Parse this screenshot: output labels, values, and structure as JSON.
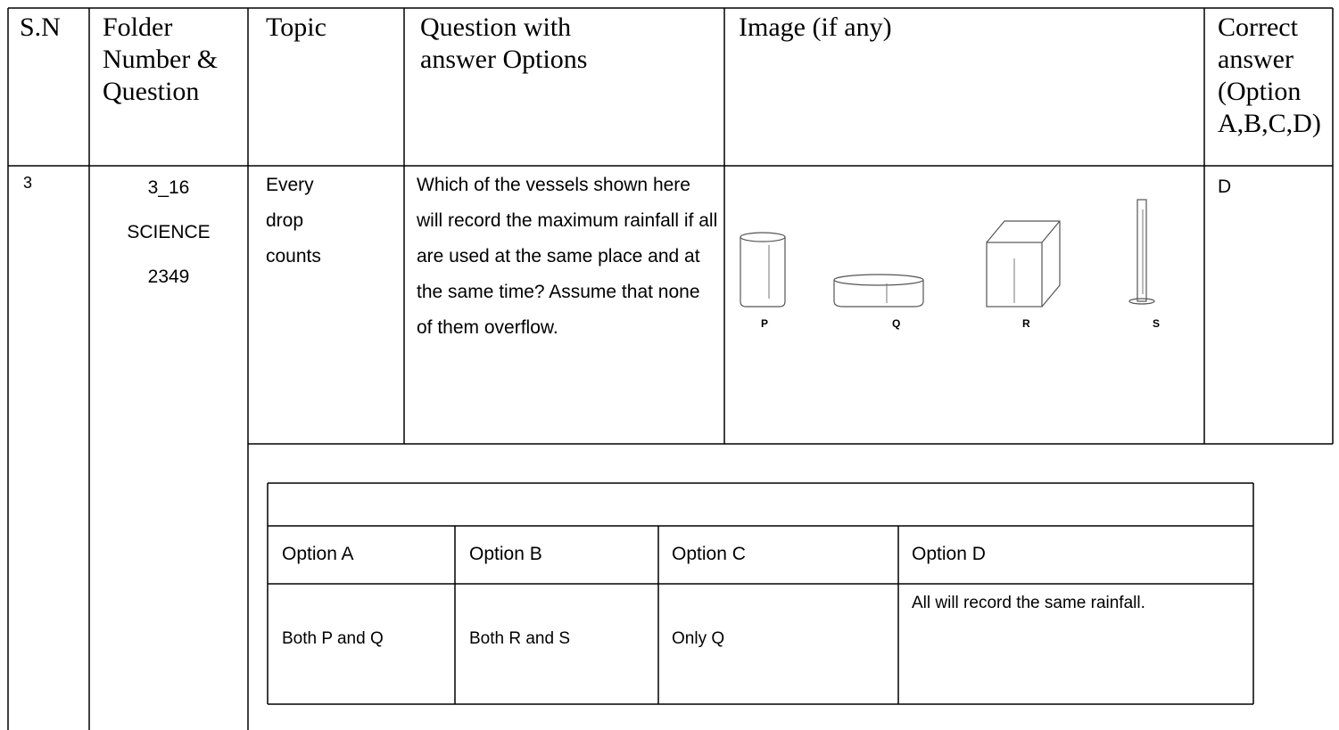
{
  "header": {
    "cells": [
      "S.N",
      "Folder Number & Question",
      "Topic",
      "Question with answer Options",
      "Image (if any)",
      "Correct answer (Option A,B,C,D)"
    ]
  },
  "row": {
    "sn": "3",
    "folder": [
      "3_16",
      "SCIENCE",
      "2349"
    ],
    "topic": "Every drop counts",
    "question": "Which of the vessels shown here will record the maximum rainfall if all are used at the same place and at the same time? Assume that none of them overflow.",
    "image_labels": [
      "P",
      "Q",
      "R",
      "S"
    ],
    "answer": "D"
  },
  "options": {
    "headers": [
      "Option A",
      "Option B",
      "Option C",
      "Option D"
    ],
    "values": [
      "Both P and Q",
      "Both R and S",
      "Only Q",
      "All will record the same rainfall."
    ]
  }
}
